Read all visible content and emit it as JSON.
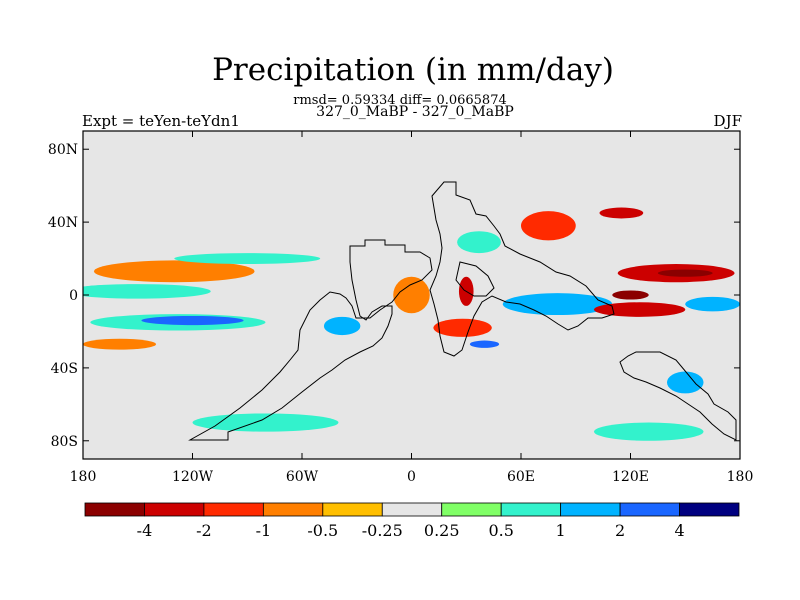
{
  "title": "Precipitation (in mm/day)",
  "stats_line": "rmsd= 0.59334 diff= 0.0665874",
  "subtitle": "327_0_MaBP - 327_0_MaBP",
  "left_label": "Expt = teYen-teYdn1",
  "right_label": "DJF",
  "lat_axis": {
    "ticks": [
      {
        "value": 80,
        "label": "80N"
      },
      {
        "value": 40,
        "label": "40N"
      },
      {
        "value": 0,
        "label": "0"
      },
      {
        "value": -40,
        "label": "40S"
      },
      {
        "value": -80,
        "label": "80S"
      }
    ],
    "range": [
      -90,
      90
    ]
  },
  "lon_axis": {
    "ticks": [
      {
        "value": -180,
        "label": "180"
      },
      {
        "value": -120,
        "label": "120W"
      },
      {
        "value": -60,
        "label": "60W"
      },
      {
        "value": 0,
        "label": "0"
      },
      {
        "value": 60,
        "label": "60E"
      },
      {
        "value": 120,
        "label": "120E"
      },
      {
        "value": 180,
        "label": "180"
      }
    ],
    "range": [
      -180,
      180
    ]
  },
  "colorbar": {
    "colors": [
      "#8b0000",
      "#cc0000",
      "#ff2a00",
      "#ff7f00",
      "#ffbf00",
      "#e6e6e6",
      "#80ff66",
      "#33f2cc",
      "#00b3ff",
      "#1a66ff",
      "#000080"
    ],
    "labels": [
      "-4",
      "-2",
      "-1",
      "-0.5",
      "-0.25",
      "0.25",
      "0.5",
      "1",
      "2",
      "4"
    ]
  },
  "chart_data": {
    "type": "heatmap",
    "title": "Precipitation (in mm/day)",
    "variable": "precipitation difference",
    "units": "mm/day",
    "season": "DJF",
    "levels": [
      -4,
      -2,
      -1,
      -0.5,
      -0.25,
      0.25,
      0.5,
      1,
      2,
      4
    ],
    "lon_range": [
      -180,
      180
    ],
    "lat_range": [
      -90,
      90
    ],
    "fill_features": [
      {
        "lon": -140,
        "lat": 13,
        "dlon": 32,
        "dlat": 3,
        "level": -2
      },
      {
        "lon": -130,
        "lat": 13,
        "dlon": 44,
        "dlat": 6,
        "level": -0.5
      },
      {
        "lon": -165,
        "lat": 3,
        "dlon": 18,
        "dlat": 2.5,
        "level": 1
      },
      {
        "lon": -150,
        "lat": 2,
        "dlon": 40,
        "dlat": 4,
        "level": 0.5
      },
      {
        "lon": -128,
        "lat": -15,
        "dlon": 48,
        "dlat": 4.5,
        "level": 0.5
      },
      {
        "lon": -120,
        "lat": -14,
        "dlon": 28,
        "dlat": 2.5,
        "level": 2
      },
      {
        "lon": -160,
        "lat": -27,
        "dlon": 20,
        "dlat": 3,
        "level": -0.5
      },
      {
        "lon": -90,
        "lat": 20,
        "dlon": 40,
        "dlat": 3,
        "level": 0.5
      },
      {
        "lon": -38,
        "lat": -17,
        "dlon": 10,
        "dlat": 5,
        "level": 1
      },
      {
        "lon": 0,
        "lat": 0,
        "dlon": 10,
        "dlat": 10,
        "level": -0.5
      },
      {
        "lon": 30,
        "lat": 2,
        "dlon": 4,
        "dlat": 8,
        "level": -2
      },
      {
        "lon": 28,
        "lat": -18,
        "dlon": 16,
        "dlat": 5,
        "level": -1
      },
      {
        "lon": 40,
        "lat": -27,
        "dlon": 8,
        "dlat": 2,
        "level": 2
      },
      {
        "lon": 37,
        "lat": 29,
        "dlon": 12,
        "dlat": 6,
        "level": 0.5
      },
      {
        "lon": 80,
        "lat": -5,
        "dlon": 30,
        "dlat": 6,
        "level": 1
      },
      {
        "lon": 75,
        "lat": 38,
        "dlon": 15,
        "dlat": 8,
        "level": -1
      },
      {
        "lon": 115,
        "lat": 45,
        "dlon": 12,
        "dlat": 3,
        "level": -2
      },
      {
        "lon": 145,
        "lat": 12,
        "dlon": 32,
        "dlat": 5,
        "level": -2
      },
      {
        "lon": 150,
        "lat": 12,
        "dlon": 15,
        "dlat": 2,
        "level": -4
      },
      {
        "lon": 125,
        "lat": -8,
        "dlon": 25,
        "dlat": 4,
        "level": -2
      },
      {
        "lon": 120,
        "lat": 0,
        "dlon": 10,
        "dlat": 2.5,
        "level": -4
      },
      {
        "lon": 165,
        "lat": -5,
        "dlon": 15,
        "dlat": 4,
        "level": 1
      },
      {
        "lon": 150,
        "lat": -48,
        "dlon": 10,
        "dlat": 6,
        "level": 1
      },
      {
        "lon": -80,
        "lat": -70,
        "dlon": 40,
        "dlat": 5,
        "level": 0.5
      },
      {
        "lon": 130,
        "lat": -75,
        "dlon": 30,
        "dlat": 5,
        "level": 0.5
      }
    ]
  }
}
